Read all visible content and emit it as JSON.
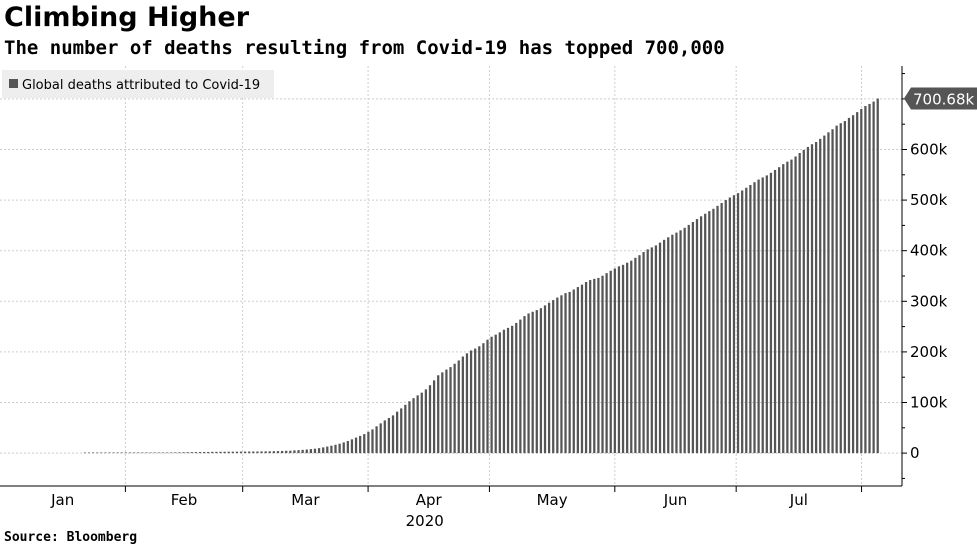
{
  "title": "Climbing Higher",
  "subtitle": "The number of deaths resulting from Covid-19 has topped 700,000",
  "source": "Source: Bloomberg",
  "colors": {
    "bar": "#555555",
    "grid": "#cccccc",
    "callout": "#555555",
    "legend_bg": "#eeeeee"
  },
  "chart_data": {
    "type": "bar",
    "series": [
      {
        "name": "Global deaths attributed to Covid-19"
      }
    ],
    "legend_placement": "top-left",
    "grid": true,
    "ylim": [
      -65000,
      765000
    ],
    "y_ticks": [
      0,
      100000,
      200000,
      300000,
      400000,
      500000,
      600000
    ],
    "y_tick_labels": [
      "0",
      "100k",
      "200k",
      "300k",
      "400k",
      "500k",
      "600k"
    ],
    "x_month_labels": [
      "Jan",
      "Feb",
      "Mar",
      "Apr",
      "May",
      "Jun",
      "Jul"
    ],
    "x_year_label": "2020",
    "last_value_label": "700.68k",
    "x_start": "2020-01-22",
    "x_end": "2020-08-05",
    "values": [
      17,
      18,
      26,
      42,
      56,
      82,
      131,
      133,
      171,
      213,
      259,
      362,
      426,
      492,
      564,
      634,
      719,
      806,
      906,
      1013,
      1113,
      1118,
      1371,
      1523,
      1666,
      1770,
      1868,
      2007,
      2122,
      2247,
      2251,
      2458,
      2469,
      2629,
      2708,
      2770,
      2814,
      2872,
      2941,
      2996,
      3085,
      3160,
      3254,
      3348,
      3460,
      3558,
      3803,
      3996,
      4262,
      4615,
      4720,
      5404,
      5819,
      6440,
      7126,
      7905,
      8733,
      9867,
      11299,
      12973,
      14623,
      16497,
      18615,
      21181,
      23970,
      27198,
      30652,
      33925,
      37582,
      42107,
      46809,
      52983,
      58787,
      64606,
      69374,
      74565,
      81865,
      88338,
      95455,
      102525,
      108503,
      114091,
      119482,
      125984,
      134177,
      143800,
      153821,
      159509,
      165044,
      169986,
      176583,
      183066,
      190858,
      197159,
      202846,
      206544,
      211167,
      217153,
      224172,
      230048,
      234112,
      238650,
      243808,
      247470,
      251537,
      257239,
      263855,
      270740,
      275976,
      279311,
      282709,
      286330,
      291942,
      297197,
      302418,
      307395,
      311847,
      316169,
      318481,
      323285,
      328115,
      332924,
      338160,
      342029,
      344454,
      346232,
      350453,
      355629,
      360308,
      364867,
      369126,
      372035,
      376320,
      380252,
      385947,
      391136,
      397388,
      402699,
      406543,
      410451,
      415968,
      421458,
      426493,
      431541,
      435662,
      440290,
      445188,
      450948,
      456726,
      462519,
      467986,
      473034,
      478076,
      482829,
      488651,
      494207,
      500097,
      505069,
      509665,
      513834,
      519018,
      524424,
      529866,
      535286,
      540633,
      544792,
      548838,
      553943,
      559485,
      565035,
      571014,
      575992,
      580060,
      586206,
      593076,
      599133,
      605066,
      610487,
      614781,
      621101,
      627451,
      633931,
      639989,
      647147,
      651902,
      656175,
      662483,
      667808,
      673811,
      680166,
      685853,
      690000,
      694715,
      700680
    ]
  }
}
